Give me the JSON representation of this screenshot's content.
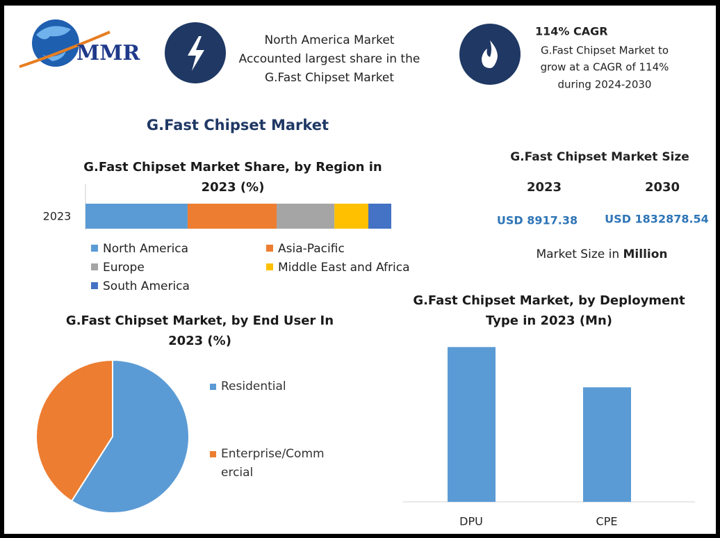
{
  "header": {
    "logo": "MMR",
    "fact1_lines": [
      "North America Market",
      "Accounted largest share in the",
      "G.Fast Chipset Market"
    ],
    "fact2_title": "114% CAGR",
    "fact2_lines": [
      "G.Fast Chipset Market to",
      "grow at a CAGR of 114%",
      "during 2024-2030"
    ]
  },
  "title": "G.Fast Chipset Market",
  "market_size": {
    "title": "G.Fast Chipset Market Size",
    "years": [
      "2023",
      "2030"
    ],
    "values": [
      "USD 8917.38",
      "USD 1832878.54"
    ],
    "note": "Market Size in",
    "note_bold": "Million"
  },
  "chart_data": [
    {
      "type": "stacked-bar",
      "title": "G.Fast Chipset Market Share, by Region in 2023 (%)",
      "categories": [
        "2023"
      ],
      "series": [
        {
          "name": "North America",
          "color": "#5b9bd5",
          "values": [
            33.4
          ]
        },
        {
          "name": "Asia-Pacific",
          "color": "#ed7d31",
          "values": [
            29.1
          ]
        },
        {
          "name": "Europe",
          "color": "#a5a5a5",
          "values": [
            18.9
          ]
        },
        {
          "name": "Middle East and Africa",
          "color": "#ffc000",
          "values": [
            11.1
          ]
        },
        {
          "name": "South America",
          "color": "#4472c4",
          "values": [
            7.5
          ]
        }
      ]
    },
    {
      "type": "pie",
      "title": "G.Fast Chipset Market, by End User In 2023 (%)",
      "categories": [
        "Residential",
        "Enterprise/Commercial"
      ],
      "values": [
        59,
        41
      ],
      "colors": [
        "#5b9bd5",
        "#ed7d31"
      ]
    },
    {
      "type": "bar",
      "title": "G.Fast Chipset Market, by Deployment Type in 2023 (Mn)",
      "categories": [
        "DPU",
        "CPE"
      ],
      "values": [
        5125,
        3792
      ],
      "color": "#5b9bd5",
      "ylim": [
        0,
        5500
      ]
    }
  ]
}
